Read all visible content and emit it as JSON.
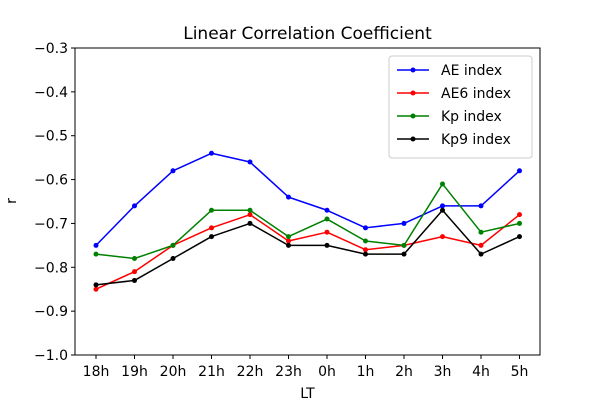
{
  "chart_data": {
    "type": "line",
    "title": "Linear Correlation Coefficient",
    "xlabel": "LT",
    "ylabel": "r",
    "categories": [
      "18h",
      "19h",
      "20h",
      "21h",
      "22h",
      "23h",
      "0h",
      "1h",
      "2h",
      "3h",
      "4h",
      "5h"
    ],
    "ylim": [
      -1.0,
      -0.3
    ],
    "yticks": [
      -1.0,
      -0.9,
      -0.8,
      -0.7,
      -0.6,
      -0.5,
      -0.4,
      -0.3
    ],
    "ytick_labels": [
      "−1.0",
      "−0.9",
      "−0.8",
      "−0.7",
      "−0.6",
      "−0.5",
      "−0.4",
      "−0.3"
    ],
    "grid": false,
    "legend_position": "top-right",
    "series": [
      {
        "name": "AE index",
        "color": "#0000ff",
        "values": [
          -0.75,
          -0.66,
          -0.58,
          -0.54,
          -0.56,
          -0.64,
          -0.67,
          -0.71,
          -0.7,
          -0.66,
          -0.66,
          -0.58
        ]
      },
      {
        "name": "AE6 index",
        "color": "#ff0000",
        "values": [
          -0.85,
          -0.81,
          -0.75,
          -0.71,
          -0.68,
          -0.74,
          -0.72,
          -0.76,
          -0.75,
          -0.73,
          -0.75,
          -0.68
        ]
      },
      {
        "name": "Kp index",
        "color": "#008000",
        "values": [
          -0.77,
          -0.78,
          -0.75,
          -0.67,
          -0.67,
          -0.73,
          -0.69,
          -0.74,
          -0.75,
          -0.61,
          -0.72,
          -0.7
        ]
      },
      {
        "name": "Kp9 index",
        "color": "#000000",
        "values": [
          -0.84,
          -0.83,
          -0.78,
          -0.73,
          -0.7,
          -0.75,
          -0.75,
          -0.77,
          -0.77,
          -0.67,
          -0.77,
          -0.73
        ]
      }
    ]
  }
}
